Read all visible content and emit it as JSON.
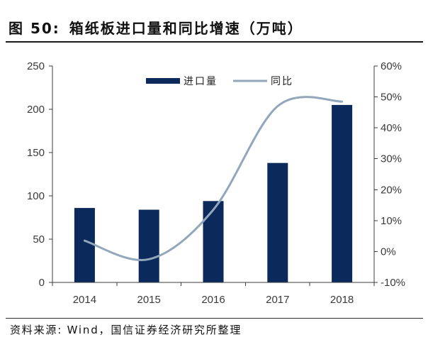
{
  "figure": {
    "label": "图 50:",
    "source": "资料来源: Wind，国信证券经济研究所整理"
  },
  "chart_data": {
    "type": "bar",
    "title": "箱纸板进口量和同比增速（万吨）",
    "categories": [
      "2014",
      "2015",
      "2016",
      "2017",
      "2018"
    ],
    "series": [
      {
        "name": "进口量",
        "type": "bar",
        "axis": "left",
        "values": [
          86,
          84,
          94,
          138,
          205
        ],
        "color": "#0b2a5b"
      },
      {
        "name": "同比",
        "type": "line",
        "axis": "right",
        "smooth": true,
        "values": [
          3.5,
          -2.5,
          13.5,
          47.0,
          48.5
        ],
        "color": "#92a7bc"
      }
    ],
    "y_left": {
      "range": [
        0,
        250
      ],
      "ticks": [
        "0",
        "50",
        "100",
        "150",
        "200",
        "250"
      ]
    },
    "y_right": {
      "range": [
        -10,
        60
      ],
      "ticks": [
        "-10%",
        "0%",
        "10%",
        "20%",
        "30%",
        "40%",
        "50%",
        "60%"
      ]
    },
    "grid": false,
    "legend": {
      "position": "top-center"
    }
  }
}
